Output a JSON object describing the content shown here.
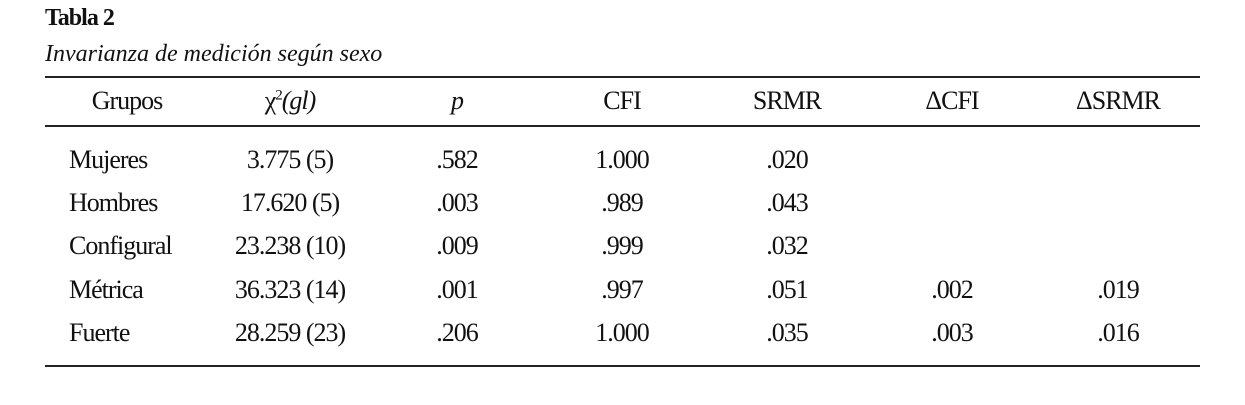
{
  "header": {
    "title": "Tabla 2",
    "subtitle": "Invarianza de medición según sexo"
  },
  "table": {
    "columns": [
      "Grupos",
      {
        "symbol": "χ",
        "superscript": "2",
        "suffix": "(gl)"
      },
      "p",
      "CFI",
      "SRMR",
      "ΔCFI",
      "ΔSRMR"
    ],
    "rows": [
      [
        "Mujeres",
        "3.775 (5)",
        ".582",
        "1.000",
        ".020"
      ],
      [
        "Hombres",
        "17.620 (5)",
        ".003",
        ".989",
        ".043"
      ],
      [
        "Configural",
        "23.238 (10)",
        ".009",
        ".999",
        ".032"
      ],
      [
        "Métrica",
        "36.323 (14)",
        ".001",
        ".997",
        ".051",
        ".002",
        ".019"
      ],
      [
        "Fuerte",
        "28.259 (23)",
        ".206",
        "1.000",
        ".035",
        ".003",
        ".016"
      ]
    ]
  }
}
